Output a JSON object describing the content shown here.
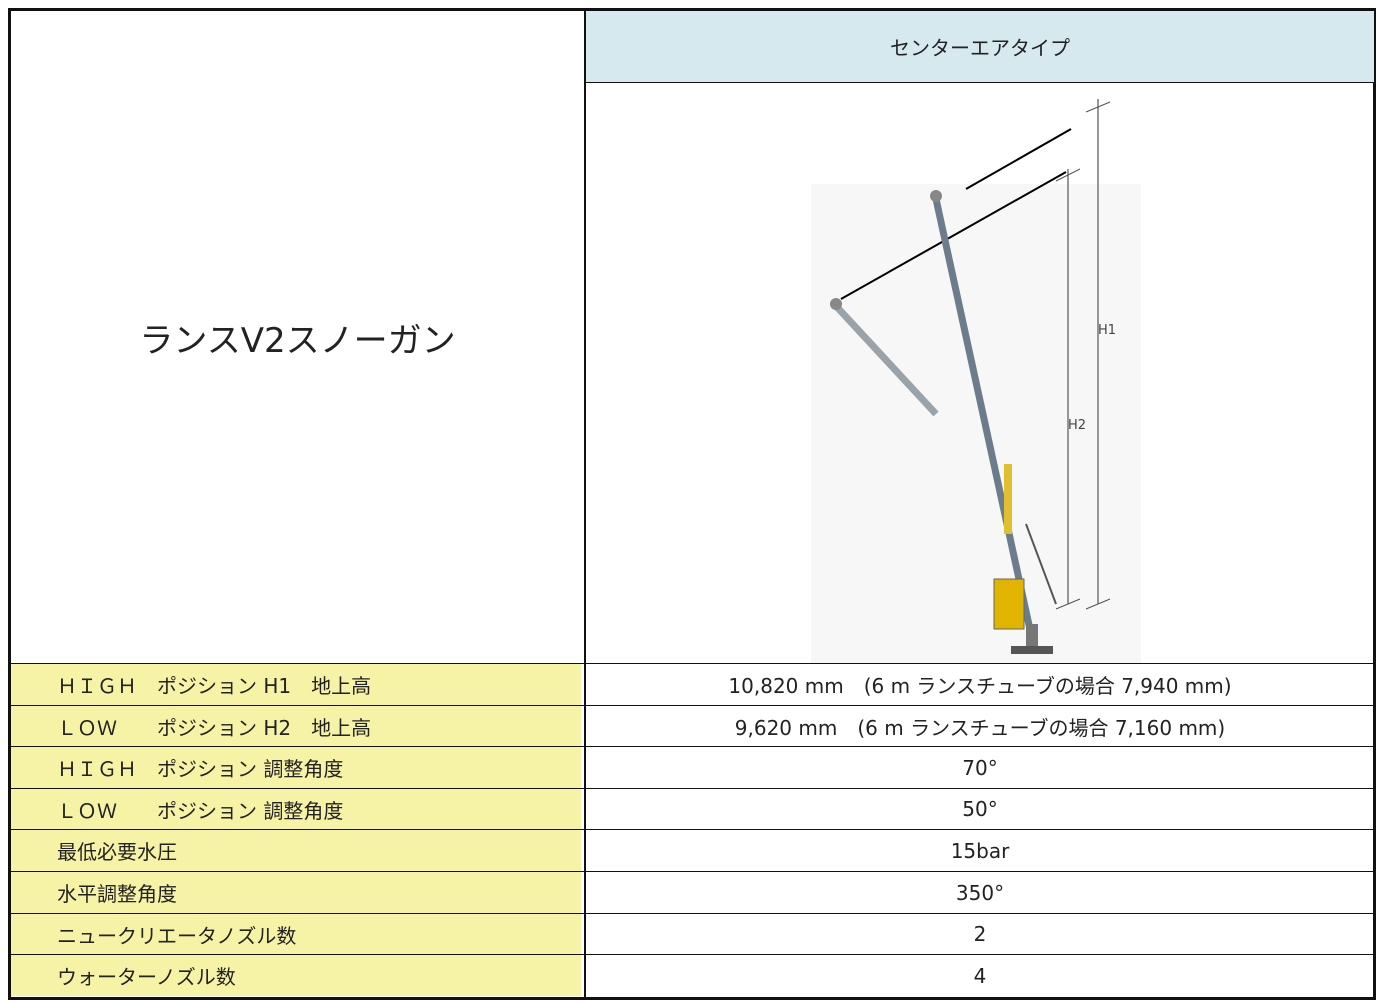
{
  "table": {
    "product_name": "ランスV2スノーガン",
    "type_header": "センターエアタイプ",
    "figure_labels": [
      "H1",
      "H2"
    ],
    "rows": [
      [
        "ＨＩＧＨ　ポジション H1　地上高",
        "10,820 mm　(6 m ランスチューブの場合 7,940 mm)"
      ],
      [
        "ＬＯＷ　　ポジション H2　地上高",
        "9,620 mm　(6 m ランスチューブの場合 7,160 mm)"
      ],
      [
        "ＨＩＧＨ　ポジション 調整角度",
        "70°"
      ],
      [
        "ＬＯＷ　　ポジション 調整角度",
        "50°"
      ],
      [
        "最低必要水圧",
        "15bar"
      ],
      [
        "水平調整角度",
        "350°"
      ],
      [
        "ニュークリエータノズル数",
        "2"
      ],
      [
        "ウォーターノズル数",
        "4"
      ]
    ]
  }
}
